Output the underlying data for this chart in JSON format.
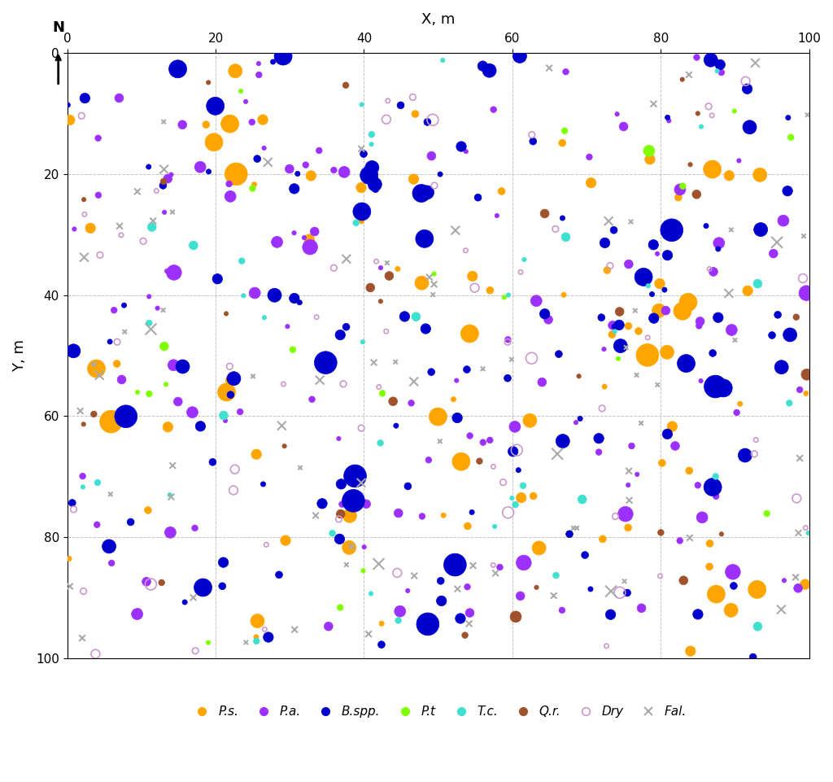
{
  "title": "X, m",
  "ylabel": "Y, m",
  "xlim": [
    0,
    100
  ],
  "ylim": [
    0,
    100
  ],
  "xticks": [
    0,
    20,
    40,
    60,
    80,
    100
  ],
  "yticks": [
    0,
    20,
    40,
    60,
    80,
    100
  ],
  "background_color": "#ffffff",
  "grid_color": "#aaaaaa",
  "species": {
    "P.s.": {
      "color": "#FFA500",
      "marker": "o",
      "label": "P.s.",
      "style": "filled"
    },
    "P.a.": {
      "color": "#9B30FF",
      "marker": "o",
      "label": "P.a.",
      "style": "filled"
    },
    "B.spp.": {
      "color": "#0000CD",
      "marker": "o",
      "label": "B.spp.",
      "style": "filled"
    },
    "P.t": {
      "color": "#7FFF00",
      "marker": "o",
      "label": "P.t",
      "style": "filled"
    },
    "T.c.": {
      "color": "#40E0D0",
      "marker": "o",
      "label": "T.c.",
      "style": "filled"
    },
    "Q.r.": {
      "color": "#A0522D",
      "marker": "o",
      "label": "Q.r.",
      "style": "filled"
    },
    "Dry": {
      "color": "#CC99CC",
      "marker": "o",
      "label": "Dry",
      "style": "open"
    },
    "Fal.": {
      "color": "#AAAAAA",
      "marker": "x",
      "label": "Fal.",
      "style": "cross"
    }
  },
  "seed": 42,
  "n_points": {
    "P.s.": 80,
    "P.a.": 120,
    "B.spp.": 130,
    "P.t": 20,
    "T.c.": 40,
    "Q.r.": 30,
    "Dry": 60,
    "Fal.": 80
  }
}
